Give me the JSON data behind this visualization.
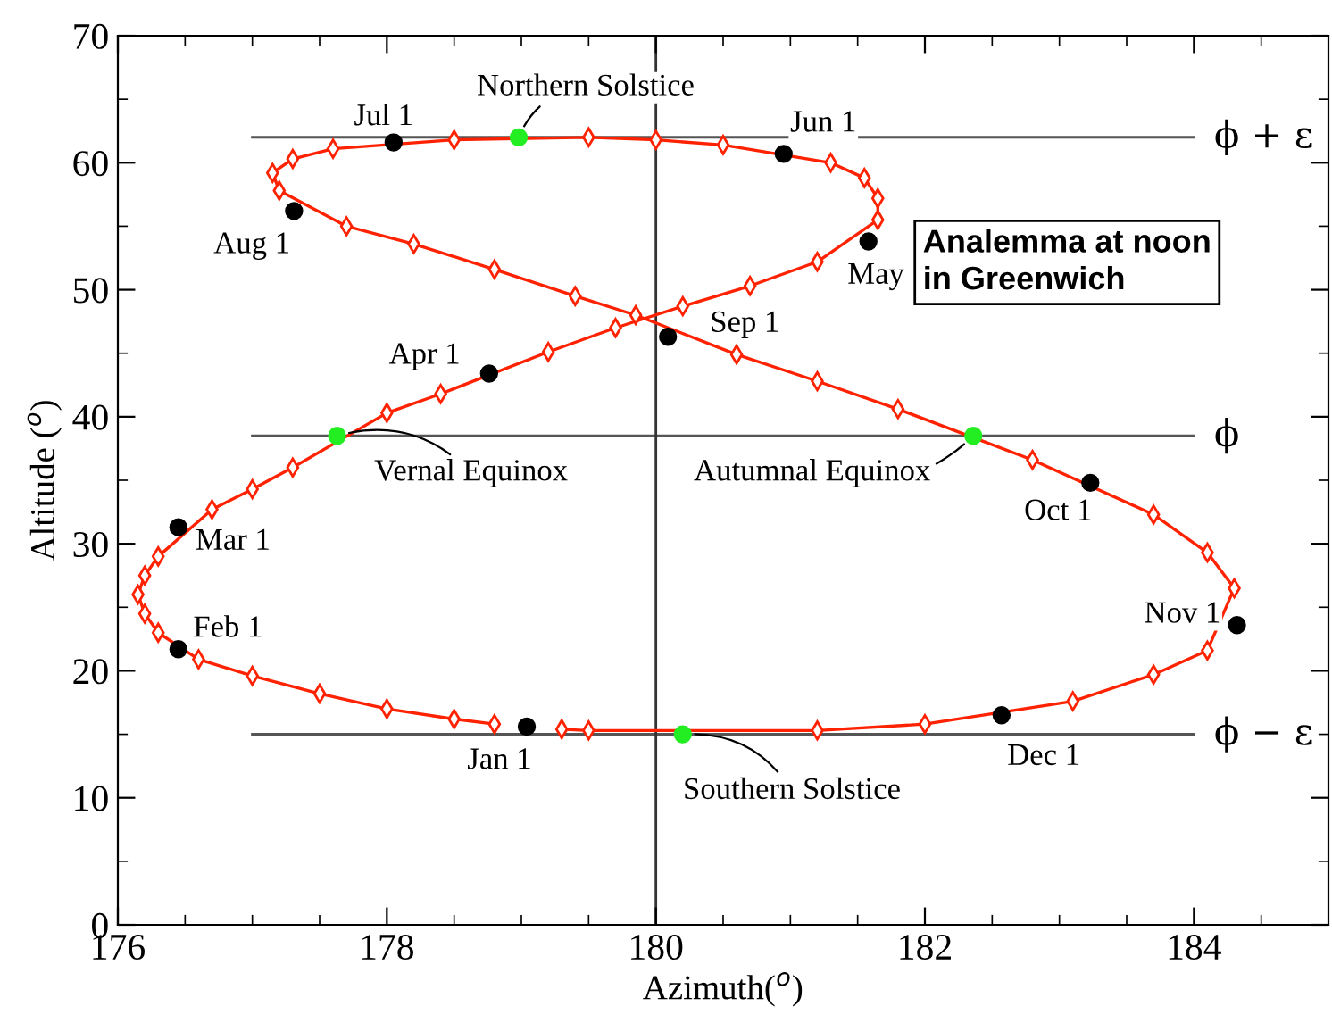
{
  "chart_data": {
    "type": "scatter",
    "xlabel": "Azimuth($^{o}$)",
    "ylabel": "Altitude ($^{o}$)",
    "xlim": [
      176,
      185
    ],
    "xticks": [
      176,
      178,
      180,
      182,
      184
    ],
    "ylim": [
      0,
      70
    ],
    "yticks": [
      0,
      10,
      20,
      30,
      40,
      50,
      60,
      70
    ],
    "grid": false,
    "series": [
      {
        "type": "line",
        "marker": "diamond",
        "color": "#ff2200",
        "x": [
          178.8,
          178.5,
          178.0,
          177.5,
          177.0,
          176.6,
          176.3,
          176.2,
          176.15,
          176.2,
          176.3,
          176.7,
          177.0,
          177.3,
          178.0,
          178.4,
          179.2,
          179.7,
          180.2,
          180.7,
          181.2,
          181.65,
          181.65,
          181.55,
          181.3,
          180.5,
          180.0,
          179.5,
          178.5,
          177.6,
          177.3,
          177.15,
          177.2,
          177.7,
          178.2,
          178.8,
          179.4,
          179.85,
          180.6,
          181.2,
          181.8,
          182.8,
          183.7,
          184.1,
          184.3,
          184.1,
          183.7,
          183.1,
          182.0,
          181.2,
          179.5,
          179.3
        ],
        "values": [
          15.8,
          16.2,
          17.0,
          18.2,
          19.6,
          20.9,
          23.0,
          24.5,
          26.0,
          27.5,
          29.0,
          32.7,
          34.3,
          36.0,
          40.3,
          41.8,
          45.1,
          47.0,
          48.7,
          50.3,
          52.2,
          55.5,
          57.2,
          58.8,
          60.0,
          61.4,
          61.8,
          62.0,
          61.8,
          61.1,
          60.3,
          59.2,
          57.8,
          55.0,
          53.6,
          51.6,
          49.5,
          48.0,
          44.9,
          42.8,
          40.6,
          36.6,
          32.3,
          29.3,
          26.5,
          21.6,
          19.7,
          17.6,
          15.8,
          15.3,
          15.3,
          15.4
        ]
      },
      {
        "marker": "circle",
        "color": "#000000",
        "x": [
          179.04,
          176.45,
          176.45,
          178.76,
          181.58,
          180.95,
          178.05,
          177.31,
          180.09,
          183.23,
          184.32,
          182.57
        ],
        "values": [
          15.6,
          21.7,
          31.3,
          43.4,
          53.8,
          60.7,
          61.6,
          56.2,
          46.3,
          34.8,
          23.6,
          16.5
        ]
      },
      {
        "marker": "circle",
        "color": "#22ee22",
        "x": [
          177.63,
          178.98,
          182.36,
          180.2
        ],
        "values": [
          38.5,
          62.0,
          38.5,
          15.0
        ]
      }
    ],
    "ref_lines": [
      {
        "axis": "y",
        "value": 62,
        "label": "ϕ + ε",
        "color": "#555555"
      },
      {
        "axis": "y",
        "value": 38.5,
        "label": "ϕ",
        "color": "#555555"
      },
      {
        "axis": "y",
        "value": 15,
        "label": "ϕ − ε",
        "color": "#555555"
      },
      {
        "axis": "x",
        "value": 180,
        "label": null,
        "color": "#333333"
      }
    ],
    "annotations": [
      {
        "text": "Jul 1",
        "x": 178.05,
        "y": 61.6
      },
      {
        "text": "Northern Solstice",
        "x": 178.98,
        "y": 62.0
      },
      {
        "text": "Jun 1",
        "x": 180.95,
        "y": 60.7
      },
      {
        "text": "Aug 1",
        "x": 177.31,
        "y": 56.2
      },
      {
        "text": "May",
        "x": 181.58,
        "y": 53.8
      },
      {
        "text": "Sep 1",
        "x": 180.09,
        "y": 46.3
      },
      {
        "text": "Apr 1",
        "x": 178.76,
        "y": 43.4
      },
      {
        "text": "Vernal Equinox",
        "x": 177.63,
        "y": 38.5
      },
      {
        "text": "Autumnal Equinox",
        "x": 182.36,
        "y": 38.5
      },
      {
        "text": "Oct 1",
        "x": 183.23,
        "y": 34.8
      },
      {
        "text": "Mar 1",
        "x": 176.45,
        "y": 31.3
      },
      {
        "text": "Feb 1",
        "x": 176.45,
        "y": 21.7
      },
      {
        "text": "Nov 1",
        "x": 184.32,
        "y": 23.6
      },
      {
        "text": "Jan 1",
        "x": 179.04,
        "y": 15.6
      },
      {
        "text": "Dec 1",
        "x": 182.57,
        "y": 16.5
      },
      {
        "text": "Southern Solstice",
        "x": 180.2,
        "y": 15.0
      },
      "Analemma at noon\nin Greenwich"
    ]
  }
}
